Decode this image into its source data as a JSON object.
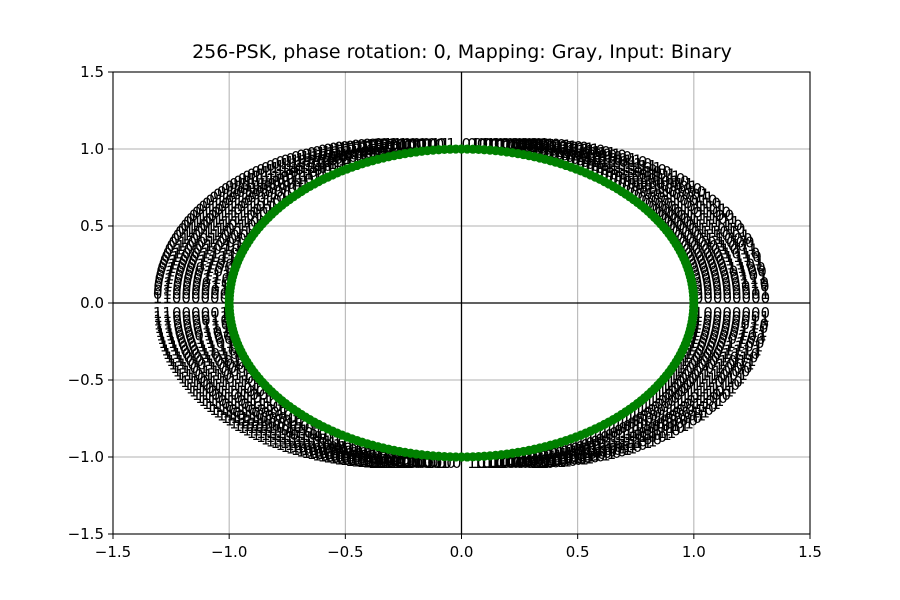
{
  "chart_data": {
    "type": "scatter",
    "title": "256-PSK, phase rotation: 0, Mapping: Gray, Input: Binary",
    "xlabel": "",
    "ylabel": "",
    "xlim": [
      -1.5,
      1.5
    ],
    "ylim": [
      -1.5,
      1.5
    ],
    "xticks": [
      -1.5,
      -1.0,
      -0.5,
      0.0,
      0.5,
      1.0,
      1.5
    ],
    "yticks": [
      -1.5,
      -1.0,
      -0.5,
      0.0,
      0.5,
      1.0,
      1.5
    ],
    "xtick_labels": [
      "−1.5",
      "−1.0",
      "−0.5",
      "0.0",
      "0.5",
      "1.0",
      "1.5"
    ],
    "ytick_labels": [
      "−1.5",
      "−1.0",
      "−0.5",
      "0.0",
      "0.5",
      "1.0",
      "1.5"
    ],
    "grid": true,
    "legend": "none",
    "axis_lines_at_origin": true,
    "series": [
      {
        "marker_color": "#008000",
        "points": "256 constellation points, unit circle, phase k*2*pi/256 for k = 0..255",
        "modulation_order": 256,
        "phase_rotation": 0,
        "label_bits": 8,
        "label_mapping": "Gray"
      }
    ],
    "annotations": {
      "content": "8-bit Gray-coded symbol label beside each point",
      "text_color": "#000000"
    }
  }
}
